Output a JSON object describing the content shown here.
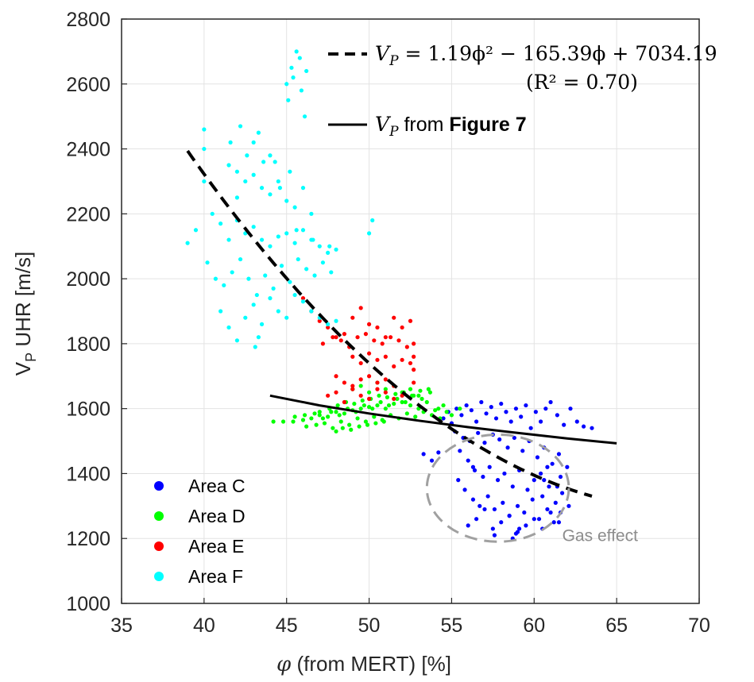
{
  "chart_data": {
    "type": "scatter",
    "title": "",
    "xlabel": "(from MERT) [%]",
    "xlabel_symbol": "φ",
    "ylabel": "UHR [m/s]",
    "ylabel_symbol": "V",
    "ylabel_subscript": "P",
    "xlim": [
      35,
      70
    ],
    "ylim": [
      1000,
      2800
    ],
    "x_ticks": [
      "35",
      "40",
      "45",
      "50",
      "55",
      "60",
      "65",
      "70"
    ],
    "y_ticks": [
      "1000",
      "1200",
      "1400",
      "1600",
      "1800",
      "2000",
      "2200",
      "2400",
      "2600",
      "2800"
    ],
    "grid": true,
    "legend_position": "bottom-left",
    "series": [
      {
        "name": "Area C",
        "color": "#0000ff",
        "x": [
          54.5,
          54.8,
          55.0,
          55.3,
          55.6,
          55.9,
          56.2,
          56.5,
          56.8,
          57.1,
          57.4,
          57.7,
          58.0,
          58.3,
          58.6,
          58.9,
          59.2,
          59.5,
          59.8,
          60.1,
          60.4,
          60.7,
          61.0,
          61.4,
          61.8,
          62.2,
          62.6,
          63.0,
          63.5,
          55.2,
          55.7,
          56.1,
          56.6,
          57.0,
          57.5,
          57.9,
          58.4,
          58.8,
          59.3,
          59.7,
          60.2,
          60.6,
          61.1,
          61.5,
          62.0,
          55.5,
          56.0,
          56.4,
          56.9,
          57.3,
          57.8,
          58.2,
          58.7,
          59.1,
          59.6,
          60.0,
          60.5,
          60.9,
          61.3,
          61.7,
          53.3,
          53.8,
          54.2,
          55.4,
          55.8,
          56.3,
          56.7,
          57.2,
          57.6,
          58.1,
          58.5,
          59.0,
          59.4,
          59.9,
          60.3,
          60.8,
          61.2,
          61.6,
          62.1,
          56.0,
          56.5,
          57.0,
          57.5,
          58.0,
          58.5,
          59.0,
          59.5,
          60.0,
          60.5,
          61.0,
          61.5,
          58.7,
          58.9,
          59.1,
          60.4,
          60.6,
          60.8,
          61.4,
          61.6,
          56.3,
          57.6
        ],
        "y": [
          1570,
          1590,
          1555,
          1600,
          1580,
          1610,
          1595,
          1560,
          1620,
          1585,
          1605,
          1570,
          1615,
          1590,
          1560,
          1600,
          1575,
          1610,
          1540,
          1590,
          1560,
          1600,
          1620,
          1580,
          1550,
          1600,
          1560,
          1545,
          1540,
          1530,
          1510,
          1500,
          1525,
          1495,
          1520,
          1505,
          1480,
          1510,
          1470,
          1500,
          1450,
          1480,
          1430,
          1460,
          1420,
          1470,
          1440,
          1410,
          1390,
          1420,
          1380,
          1400,
          1360,
          1410,
          1350,
          1380,
          1330,
          1360,
          1310,
          1340,
          1460,
          1440,
          1465,
          1380,
          1350,
          1320,
          1300,
          1330,
          1290,
          1310,
          1270,
          1300,
          1280,
          1320,
          1260,
          1290,
          1250,
          1280,
          1300,
          1240,
          1260,
          1290,
          1230,
          1250,
          1270,
          1220,
          1240,
          1260,
          1230,
          1280,
          1250,
          1200,
          1215,
          1230,
          1400,
          1380,
          1420,
          1360,
          1390,
          1420,
          1210
        ]
      },
      {
        "name": "Area D",
        "color": "#00ff00",
        "x": [
          44.2,
          44.8,
          45.4,
          46.0,
          46.5,
          47.0,
          47.5,
          48.0,
          48.5,
          49.0,
          49.5,
          50.0,
          50.5,
          51.0,
          51.5,
          52.0,
          52.5,
          53.0,
          53.5,
          54.0,
          54.5,
          55.0,
          55.5,
          46.2,
          46.8,
          47.3,
          47.8,
          48.3,
          48.8,
          49.3,
          49.8,
          50.3,
          50.8,
          51.3,
          51.8,
          52.3,
          52.8,
          53.3,
          53.8,
          54.3,
          47.0,
          47.6,
          48.1,
          48.6,
          49.1,
          49.6,
          50.1,
          50.6,
          51.1,
          51.6,
          52.1,
          52.6,
          53.1,
          53.6,
          45.5,
          46.1,
          46.7,
          47.2,
          47.7,
          48.2,
          48.7,
          49.2,
          49.7,
          50.2,
          50.7,
          51.2,
          51.7,
          52.2,
          52.7,
          53.2,
          53.7,
          54.2,
          54.7,
          49.0,
          49.5,
          50.0,
          50.5,
          51.0,
          51.5,
          52.0,
          52.5,
          53.0,
          48.0,
          48.4,
          48.9,
          49.4,
          49.9,
          50.4,
          50.9
        ],
        "y": [
          1560,
          1560,
          1560,
          1565,
          1570,
          1580,
          1575,
          1590,
          1585,
          1595,
          1600,
          1605,
          1610,
          1600,
          1615,
          1620,
          1610,
          1600,
          1620,
          1595,
          1610,
          1580,
          1600,
          1545,
          1550,
          1555,
          1540,
          1560,
          1550,
          1570,
          1560,
          1575,
          1565,
          1580,
          1570,
          1585,
          1575,
          1590,
          1580,
          1570,
          1590,
          1600,
          1610,
          1620,
          1615,
          1625,
          1630,
          1640,
          1635,
          1645,
          1650,
          1640,
          1655,
          1660,
          1575,
          1580,
          1585,
          1570,
          1590,
          1580,
          1600,
          1590,
          1610,
          1600,
          1620,
          1610,
          1630,
          1620,
          1640,
          1630,
          1650,
          1600,
          1590,
          1660,
          1670,
          1650,
          1680,
          1660,
          1670,
          1650,
          1660,
          1640,
          1530,
          1540,
          1535,
          1545,
          1550,
          1555,
          1560
        ]
      },
      {
        "name": "Area E",
        "color": "#ff0000",
        "x": [
          46.0,
          46.5,
          47.0,
          47.5,
          48.0,
          48.5,
          49.0,
          49.5,
          50.0,
          50.5,
          51.0,
          51.5,
          52.0,
          52.5,
          47.2,
          47.8,
          48.3,
          48.8,
          49.3,
          49.8,
          50.3,
          50.8,
          51.3,
          51.8,
          52.3,
          49.0,
          49.5,
          50.0,
          50.5,
          51.0,
          51.5,
          52.0,
          52.5,
          48.0,
          48.5,
          49.0,
          49.5,
          50.0,
          50.5,
          51.0,
          51.5,
          47.5,
          48.0,
          48.5,
          49.0,
          49.5,
          50.0,
          50.5,
          51.0,
          51.5,
          52.0,
          52.7,
          52.7,
          52.7,
          52.7
        ],
        "y": [
          1940,
          1900,
          1870,
          1850,
          1820,
          1830,
          1880,
          1910,
          1860,
          1850,
          1820,
          1880,
          1850,
          1870,
          1800,
          1820,
          1810,
          1790,
          1820,
          1830,
          1810,
          1800,
          1820,
          1810,
          1790,
          1760,
          1740,
          1770,
          1750,
          1760,
          1730,
          1750,
          1740,
          1700,
          1680,
          1670,
          1690,
          1700,
          1680,
          1690,
          1670,
          1640,
          1650,
          1620,
          1660,
          1640,
          1630,
          1660,
          1650,
          1630,
          1640,
          1800,
          1760,
          1720,
          1680
        ]
      },
      {
        "name": "Area F",
        "color": "#00ffff",
        "x": [
          39.0,
          39.5,
          40.0,
          40.5,
          41.0,
          41.5,
          42.0,
          42.5,
          43.0,
          43.5,
          44.0,
          44.5,
          45.0,
          45.5,
          46.0,
          46.5,
          47.0,
          47.5,
          48.0,
          40.2,
          40.7,
          41.2,
          41.7,
          42.2,
          42.7,
          43.2,
          43.7,
          44.2,
          44.7,
          45.2,
          45.7,
          46.2,
          46.7,
          47.2,
          47.7,
          41.0,
          41.5,
          42.0,
          42.5,
          43.0,
          43.5,
          44.0,
          44.5,
          45.0,
          45.5,
          46.0,
          46.5,
          47.0,
          47.5,
          48.0,
          42.0,
          42.5,
          43.0,
          43.5,
          44.0,
          44.5,
          45.0,
          45.5,
          46.0,
          46.5,
          45.0,
          45.3,
          45.6,
          45.9,
          46.2,
          45.1,
          45.4,
          45.8,
          46.1,
          40.0,
          40.0,
          41.5,
          42.2,
          43.0,
          43.3,
          44.0,
          44.3,
          45.2,
          41.6,
          42.0,
          42.6,
          43.6,
          44.6,
          45.6,
          46.6,
          47.6,
          50.0,
          50.2,
          43.1,
          43.3
        ],
        "y": [
          2110,
          2150,
          2300,
          2200,
          2170,
          2120,
          2180,
          2140,
          2160,
          2120,
          2100,
          2130,
          2140,
          2110,
          2150,
          2120,
          2100,
          2080,
          2090,
          2050,
          2000,
          1980,
          2020,
          2060,
          2000,
          1950,
          2010,
          1970,
          2040,
          1990,
          2060,
          2030,
          2010,
          2050,
          2020,
          1900,
          1850,
          1810,
          1880,
          1920,
          1860,
          1940,
          1900,
          1880,
          1950,
          1930,
          1900,
          1880,
          1860,
          1870,
          2250,
          2300,
          2320,
          2280,
          2260,
          2300,
          2240,
          2220,
          2280,
          2200,
          2600,
          2650,
          2700,
          2580,
          2640,
          2550,
          2620,
          2680,
          2500,
          2460,
          2400,
          2350,
          2470,
          2420,
          2450,
          2380,
          2360,
          2330,
          2420,
          2330,
          2380,
          2360,
          2280,
          2150,
          2120,
          2100,
          2140,
          2180,
          1790,
          1820
        ]
      }
    ],
    "lines": [
      {
        "name": "fit",
        "label_symbol": "V",
        "label_subscript": "P",
        "label_text": " = 1.19ϕ² − 165.39ϕ + 7034.19",
        "r2_text": "(R² = 0.70)",
        "style": "dashed",
        "color": "#000000",
        "coefficients": [
          1.19,
          -165.39,
          7034.19
        ],
        "x_range": [
          39,
          63.5
        ]
      },
      {
        "name": "reference",
        "label_symbol": "V",
        "label_subscript": "P",
        "label_text": " from ",
        "label_bold": "Figure 7",
        "style": "solid",
        "color": "#000000",
        "x": [
          44,
          47,
          50,
          53,
          56,
          59,
          62,
          65
        ],
        "y": [
          1640,
          1610,
          1585,
          1563,
          1543,
          1525,
          1508,
          1493
        ]
      }
    ],
    "annotations": [
      {
        "text": "Gas effect",
        "color": "#a0a0a0",
        "ellipse_center": [
          57.8,
          1355
        ],
        "ellipse_radii": [
          4.3,
          165
        ]
      }
    ]
  }
}
